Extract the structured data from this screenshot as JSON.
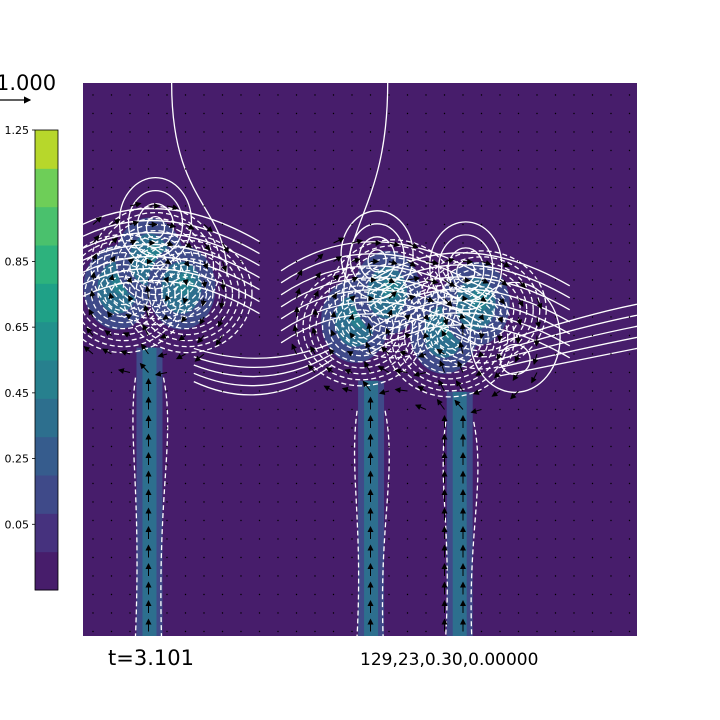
{
  "chart_data": {
    "type": "heatmap",
    "title": "",
    "xlabel": "",
    "ylabel": "",
    "colorbar": {
      "tick_labels": [
        "1.25",
        "0.85",
        "0.65",
        "0.45",
        "0.25",
        "0.05"
      ],
      "tick_values": [
        1.25,
        0.85,
        0.65,
        0.45,
        0.25,
        0.05
      ],
      "range": [
        -0.15,
        1.25
      ],
      "levels": 11,
      "colors": [
        "#471d6b",
        "#46327e",
        "#3f4a89",
        "#365c8d",
        "#2d6f8e",
        "#27808e",
        "#21918c",
        "#1fa187",
        "#2db27d",
        "#4ac16d",
        "#6ece58",
        "#b7d72b"
      ]
    },
    "quiver_key_label": "1.000",
    "annotations": {
      "time": "t=3.101",
      "params": "129,23,0.30,0.00000"
    },
    "plumes": [
      {
        "x": 0.12,
        "head_y": 0.37,
        "heads": 3
      },
      {
        "x": 0.52,
        "head_y": 0.43,
        "heads": 2
      },
      {
        "x": 0.68,
        "head_y": 0.45,
        "heads": 2
      }
    ],
    "background_color": "#471d6b",
    "contour_color": "#ffffff",
    "grid": false
  }
}
